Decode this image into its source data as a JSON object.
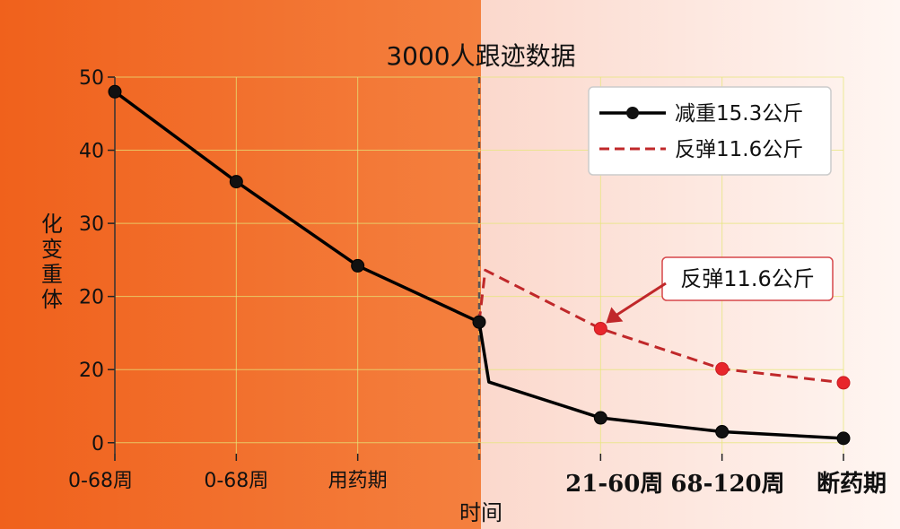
{
  "chart_data": {
    "type": "line",
    "title": "3000人跟迹数据",
    "xlabel": "时间",
    "ylabel": "化变重体",
    "y_tick_labels": [
      "0",
      "20",
      "20",
      "30",
      "40",
      "50"
    ],
    "x_tick_labels": [
      "0-68周",
      "0-68周",
      "用药期",
      "21-60周",
      "68-120周",
      "断药期"
    ],
    "series": [
      {
        "name": "减重15.3公斤",
        "color": "#000000",
        "style": "solid",
        "points": [
          {
            "x": 0,
            "y": 48,
            "marker": true
          },
          {
            "x": 1,
            "y": 35.7,
            "marker": true
          },
          {
            "x": 2,
            "y": 24.2,
            "marker": true
          },
          {
            "x": 3,
            "y": 16.5,
            "marker": true
          },
          {
            "x": 3.08,
            "y": 8.3,
            "marker": false
          },
          {
            "x": 4,
            "y": 3.4,
            "marker": true
          },
          {
            "x": 5,
            "y": 1.5,
            "marker": true
          },
          {
            "x": 6,
            "y": 0.6,
            "marker": true
          }
        ]
      },
      {
        "name": "反弹11.6公斤",
        "color": "#c0282a",
        "style": "dashed",
        "points": [
          {
            "x": 3,
            "y": 16.5,
            "marker": false
          },
          {
            "x": 3.05,
            "y": 23.6,
            "marker": false
          },
          {
            "x": 4,
            "y": 15.6,
            "marker": true
          },
          {
            "x": 5,
            "y": 10.1,
            "marker": true
          },
          {
            "x": 6,
            "y": 8.2,
            "marker": true
          }
        ]
      }
    ],
    "annotation": {
      "text": "反弹11.6公斤",
      "x": 4,
      "y": 15.6
    },
    "ylim": [
      -1.5,
      50
    ],
    "xlim": [
      0,
      6
    ],
    "grid": true,
    "legend_position": "top-right",
    "divider_x": 3,
    "background": {
      "left_color": "#f26a22",
      "right_color": "#fde9e2"
    }
  }
}
